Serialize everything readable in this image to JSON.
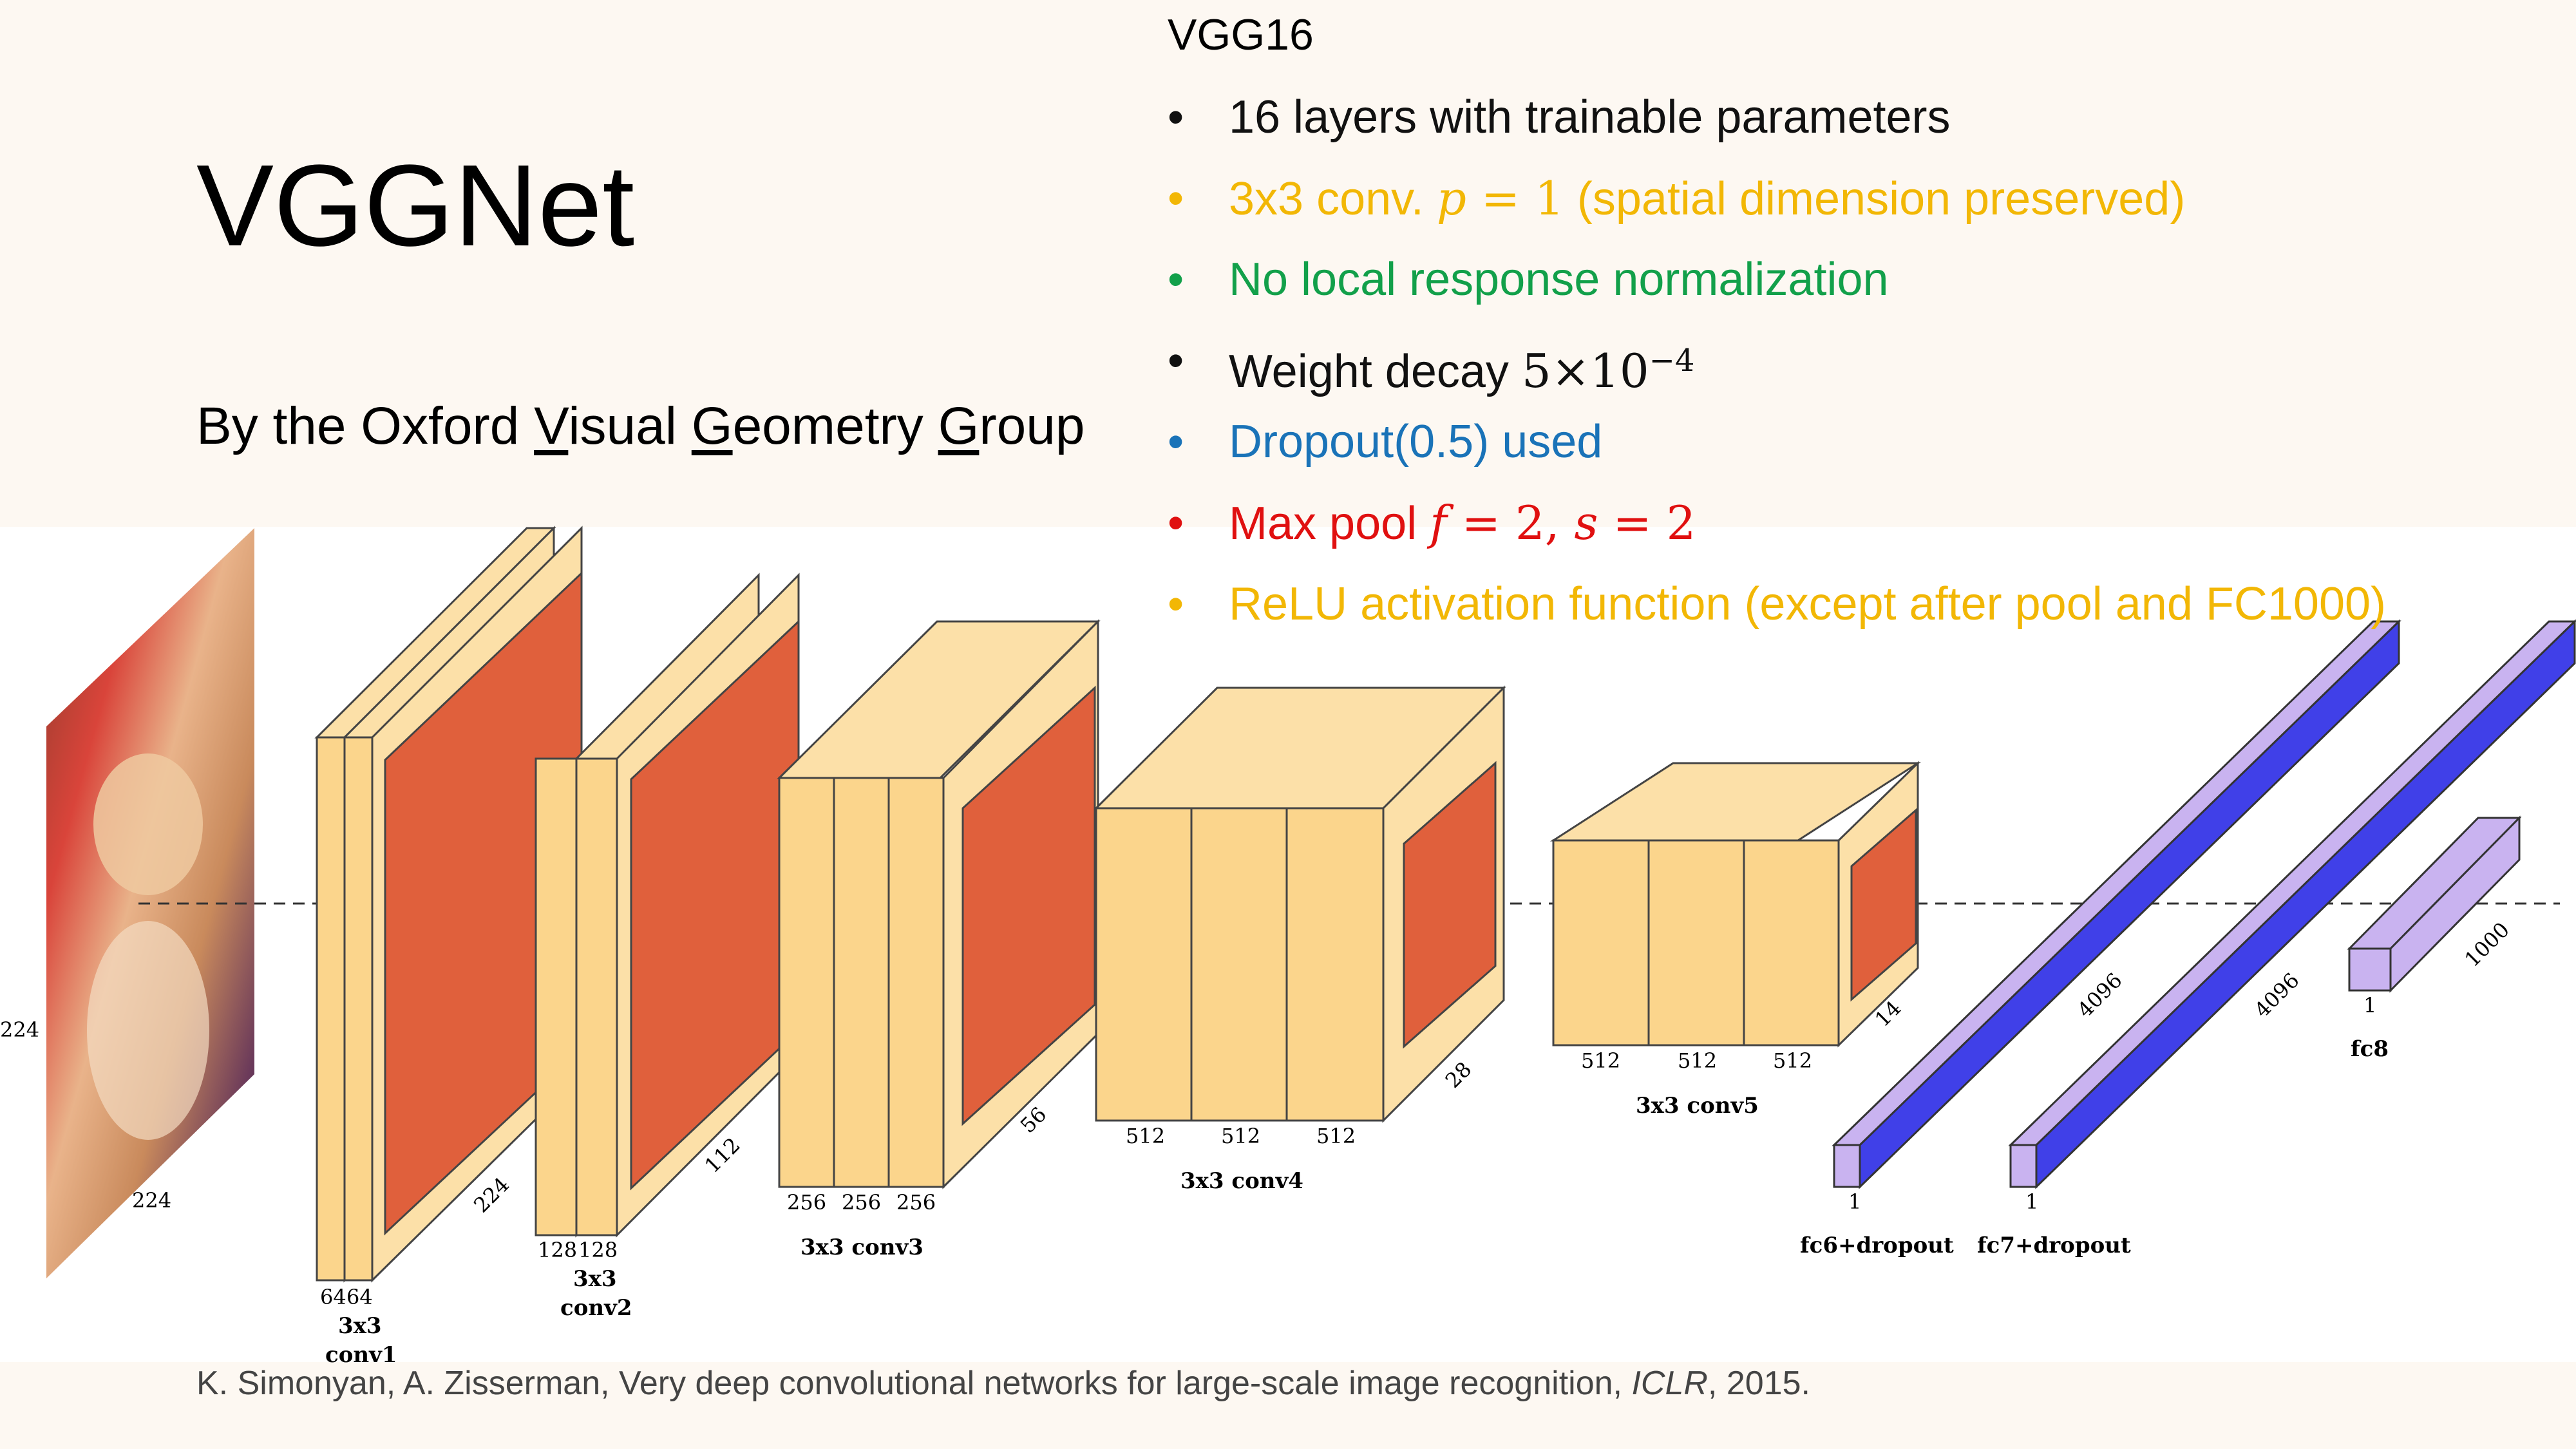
{
  "slide": {
    "title": "VGGNet",
    "subtitle_parts": [
      {
        "t": "By the Oxford ",
        "u": false
      },
      {
        "t": "V",
        "u": true
      },
      {
        "t": "isual ",
        "u": false
      },
      {
        "t": "G",
        "u": true
      },
      {
        "t": "eometry ",
        "u": false
      },
      {
        "t": "G",
        "u": true
      },
      {
        "t": "roup",
        "u": false
      }
    ],
    "list_heading": "VGG16",
    "bullet_glyph": "•",
    "bullets": [
      {
        "color": "#111111",
        "parts": [
          {
            "t": "16 layers with trainable parameters"
          }
        ]
      },
      {
        "color": "#f2b705",
        "parts": [
          {
            "t": "3x3 conv. "
          },
          {
            "t": "p",
            "m": "i"
          },
          {
            "t": " = 1",
            "m": "n"
          },
          {
            "t": " (spatial dimension preserved)"
          }
        ]
      },
      {
        "color": "#12a04a",
        "parts": [
          {
            "t": "No local response normalization"
          }
        ]
      },
      {
        "color": "#111111",
        "parts": [
          {
            "t": "Weight decay "
          },
          {
            "t": "5×10",
            "m": "n"
          },
          {
            "t": "−4",
            "m": "sup"
          }
        ]
      },
      {
        "color": "#1a73b8",
        "parts": [
          {
            "t": "Dropout(0.5) used"
          }
        ]
      },
      {
        "color": "#e01010",
        "parts": [
          {
            "t": "Max pool "
          },
          {
            "t": "f",
            "m": "i"
          },
          {
            "t": " = 2, ",
            "m": "n"
          },
          {
            "t": "s",
            "m": "i"
          },
          {
            "t": " = 2",
            "m": "n"
          }
        ]
      },
      {
        "color": "#f2b705",
        "parts": [
          {
            "t": "ReLU activation function (except after pool and FC1000)"
          }
        ]
      }
    ],
    "citation_plain": "K. Simonyan, A. Zisserman, Very deep convolutional networks for large-scale image recognition, ",
    "citation_venue": "ICLR",
    "citation_year": ", 2015."
  },
  "network": {
    "input_size_labels": [
      "224",
      "224"
    ],
    "blocks": [
      {
        "group": "3x3 conv1",
        "depth_labels": [
          "64",
          "64"
        ],
        "spatial": "224"
      },
      {
        "group": "3x3 conv2",
        "depth_labels": [
          "128",
          "128"
        ],
        "spatial": "112"
      },
      {
        "group": "3x3 conv3",
        "depth_labels": [
          "256",
          "256",
          "256"
        ],
        "spatial": "56"
      },
      {
        "group": "3x3 conv4",
        "depth_labels": [
          "512",
          "512",
          "512"
        ],
        "spatial": "28"
      },
      {
        "group": "3x3 conv5",
        "depth_labels": [
          "512",
          "512",
          "512"
        ],
        "spatial": "14"
      }
    ],
    "fc": [
      {
        "group": "fc6+dropout",
        "width": "1",
        "length": "4096"
      },
      {
        "group": "fc7+dropout",
        "width": "1",
        "length": "4096"
      },
      {
        "group": "fc8",
        "width": "1",
        "length": "1000"
      }
    ]
  },
  "colors": {
    "conv_fill": "#fce0a8",
    "conv_front": "#fbd58c",
    "pool_fill": "#e0603c",
    "fc_fill": "#c9b3f0",
    "fc_side": "#4040e8",
    "top_band": "#fdf8f2"
  }
}
